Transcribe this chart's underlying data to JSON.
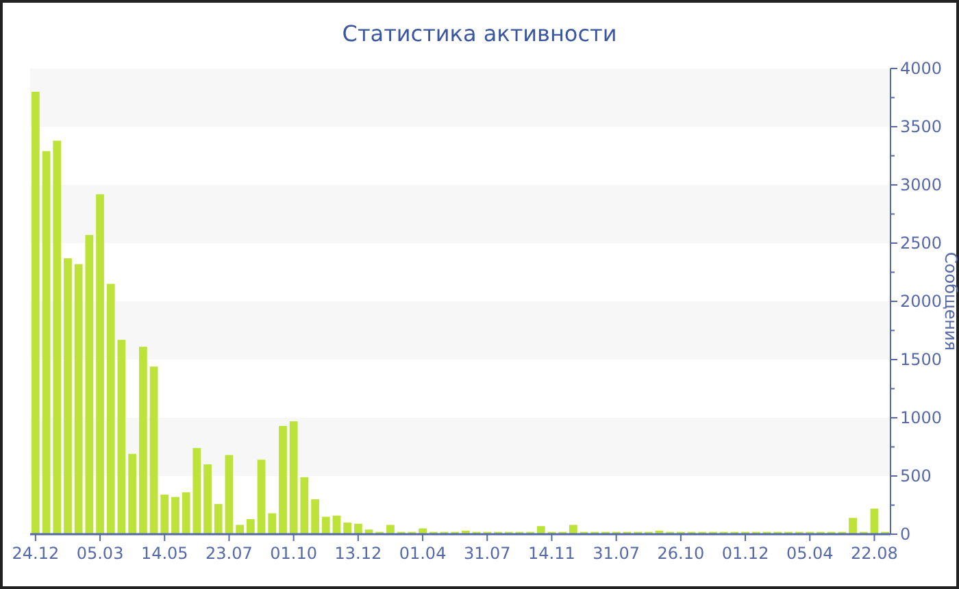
{
  "chart_data": {
    "type": "bar",
    "title": "Статистика активности",
    "ylabel": "Сообщения",
    "categories": [
      "24.12",
      null,
      null,
      null,
      null,
      null,
      "05.03",
      null,
      null,
      null,
      null,
      null,
      "14.05",
      null,
      null,
      null,
      null,
      null,
      "23.07",
      null,
      null,
      null,
      null,
      null,
      "01.10",
      null,
      null,
      null,
      null,
      null,
      "13.12",
      null,
      null,
      null,
      null,
      null,
      "01.04",
      null,
      null,
      null,
      null,
      null,
      "31.07",
      null,
      null,
      null,
      null,
      null,
      "14.11",
      null,
      null,
      null,
      null,
      null,
      "31.07",
      null,
      null,
      null,
      null,
      null,
      "26.10",
      null,
      null,
      null,
      null,
      null,
      "01.12",
      null,
      null,
      null,
      null,
      null,
      "05.04",
      null,
      null,
      null,
      null,
      null,
      "22.08",
      null
    ],
    "values": [
      3800,
      3290,
      3380,
      2370,
      2320,
      2570,
      2920,
      2150,
      1670,
      690,
      1610,
      1440,
      340,
      320,
      360,
      740,
      600,
      260,
      680,
      80,
      130,
      640,
      180,
      930,
      970,
      490,
      300,
      150,
      160,
      100,
      90,
      40,
      20,
      80,
      20,
      20,
      50,
      20,
      20,
      20,
      30,
      20,
      20,
      20,
      20,
      20,
      20,
      70,
      20,
      20,
      80,
      20,
      20,
      20,
      20,
      20,
      20,
      20,
      30,
      20,
      20,
      20,
      20,
      20,
      20,
      20,
      20,
      20,
      20,
      20,
      20,
      20,
      20,
      20,
      20,
      20,
      140,
      20,
      220,
      20
    ],
    "color": "#bde33a",
    "ylim": [
      0,
      4000
    ],
    "yticks": [
      0,
      {
        "value": 250,
        "label": null
      },
      500,
      {
        "value": 750,
        "label": null
      },
      1000,
      {
        "value": 1250,
        "label": null
      },
      1500,
      {
        "value": 1750,
        "label": null
      },
      2000,
      {
        "value": 2250,
        "label": null
      },
      2500,
      {
        "value": 2750,
        "label": null
      },
      3000,
      {
        "value": 3250,
        "label": null
      },
      3500,
      {
        "value": 3750,
        "label": null
      },
      4000
    ],
    "bands": [
      {
        "axis": "y",
        "from": 500,
        "to": 1000,
        "color": "#f7f7f7"
      },
      {
        "axis": "y",
        "from": 1500,
        "to": 2000,
        "color": "#f7f7f7"
      },
      {
        "axis": "y",
        "from": 2500,
        "to": 3000,
        "color": "#f7f7f7"
      },
      {
        "axis": "y",
        "from": 3500,
        "to": 4000,
        "color": "#f7f7f7"
      }
    ]
  }
}
